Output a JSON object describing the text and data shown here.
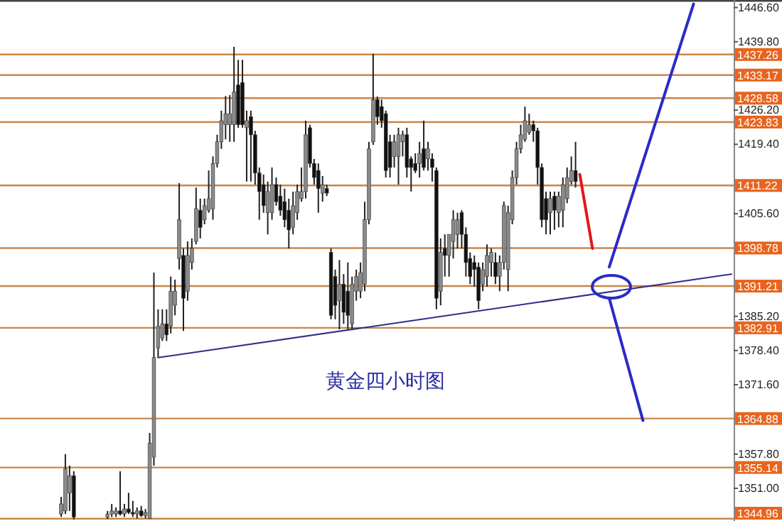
{
  "chart_data": {
    "type": "candlestick",
    "annotations": [
      "黄金四小时图"
    ],
    "tick_labels": "y",
    "categories": [
      null,
      null,
      null,
      null,
      null,
      null,
      null,
      null,
      null,
      null,
      null,
      null,
      null,
      null,
      null,
      null,
      null,
      null,
      null,
      null,
      null,
      null,
      null,
      null,
      null,
      null,
      null,
      null,
      null,
      null,
      null,
      null,
      null,
      null,
      null,
      null,
      null,
      null,
      null,
      null,
      null,
      null,
      null,
      null,
      null,
      null,
      null,
      null,
      null,
      null,
      null,
      null,
      null,
      null,
      null,
      null,
      null,
      null,
      null,
      null,
      null,
      null,
      null,
      null,
      null,
      null,
      null,
      null,
      null,
      null,
      null,
      null,
      null,
      null,
      null,
      null,
      null,
      null,
      null,
      null,
      null,
      null,
      null,
      null,
      null,
      null,
      null,
      null,
      null,
      null,
      null,
      null,
      null,
      null,
      null,
      null,
      null,
      null,
      null,
      null,
      null,
      null,
      null,
      null,
      null,
      null,
      null,
      null,
      null,
      null,
      null,
      null,
      null,
      null,
      null,
      null,
      null,
      null,
      null,
      null,
      null,
      null,
      null,
      null,
      null,
      null,
      null,
      null,
      null,
      null,
      null,
      null,
      null,
      null,
      null,
      null,
      null,
      null,
      null,
      null,
      null,
      null,
      null,
      null,
      null,
      null,
      null,
      null,
      null,
      null,
      null,
      null,
      null,
      null,
      null,
      null,
      null,
      null,
      null,
      null,
      null,
      null,
      null,
      null,
      null,
      null,
      null,
      null,
      null,
      null,
      null,
      null,
      null,
      null
    ],
    "ohlc": [
      null,
      null,
      null,
      null,
      null,
      null,
      null,
      null,
      null,
      null,
      null,
      null,
      null,
      null,
      [
        1345.9,
        1349.3,
        1345.3,
        1347.9
      ],
      [
        1346.5,
        1357.8,
        1345.9,
        1354.9
      ],
      [
        1350.1,
        1355.5,
        1346.5,
        1353.5
      ],
      [
        1353.5,
        1354.4,
        1344.8,
        1345.3
      ],
      null,
      null,
      null,
      null,
      null,
      null,
      null,
      [
        1345.3,
        1346.5,
        1344.9,
        1345.9
      ],
      [
        1345.9,
        1347.9,
        1345.3,
        1346.5
      ],
      [
        1345.9,
        1347.2,
        1345.3,
        1346.5
      ],
      [
        1346.5,
        1354.4,
        1345.6,
        1345.9
      ],
      [
        1345.9,
        1347.9,
        1345.3,
        1346.9
      ],
      [
        1346.9,
        1350.1,
        1345.9,
        1346.2
      ],
      [
        1346.2,
        1348.5,
        1345.3,
        1345.9
      ],
      [
        1345.9,
        1347.2,
        1345.0,
        1346.5
      ],
      [
        1346.5,
        1347.5,
        1345.3,
        1345.6
      ],
      [
        1345.6,
        1346.9,
        1345.0,
        1346.2
      ],
      [
        1345.0,
        1362.0,
        1344.9,
        1360.0
      ],
      [
        1357.2,
        1393.9,
        1355.5,
        1377.0
      ],
      [
        1378.9,
        1386.6,
        1377.0,
        1383.2
      ],
      [
        1380.9,
        1386.6,
        1380.3,
        1383.7
      ],
      [
        1383.7,
        1386.6,
        1380.3,
        1381.5
      ],
      [
        1383.2,
        1393.1,
        1381.8,
        1390.2
      ],
      [
        1387.4,
        1392.5,
        1385.4,
        1390.2
      ],
      [
        1396.7,
        1411.7,
        1394.5,
        1404.4
      ],
      [
        1397.3,
        1398.7,
        1382.3,
        1388.8
      ],
      [
        1390.2,
        1400.1,
        1388.3,
        1397.3
      ],
      [
        1395.9,
        1400.7,
        1394.5,
        1398.7
      ],
      [
        1400.1,
        1410.8,
        1399.5,
        1406.6
      ],
      [
        1406.3,
        1408.6,
        1400.7,
        1402.9
      ],
      [
        1404.4,
        1408.6,
        1403.5,
        1407.2
      ],
      [
        1406.3,
        1414.2,
        1405.8,
        1408.6
      ],
      [
        1406.6,
        1417.0,
        1404.4,
        1415.6
      ],
      [
        1415.6,
        1421.3,
        1414.8,
        1419.9
      ],
      [
        1419.9,
        1426.1,
        1418.5,
        1424.1
      ],
      [
        1423.3,
        1429.0,
        1420.4,
        1425.5
      ],
      [
        1423.3,
        1429.2,
        1419.9,
        1425.5
      ],
      [
        1423.3,
        1438.8,
        1419.9,
        1429.8
      ],
      [
        1431.2,
        1436.2,
        1422.7,
        1423.3
      ],
      [
        1431.7,
        1436.2,
        1422.7,
        1423.3
      ],
      [
        1422.7,
        1426.1,
        1412.0,
        1424.1
      ],
      [
        1424.9,
        1426.1,
        1412.0,
        1421.3
      ],
      [
        1421.3,
        1422.1,
        1411.4,
        1413.7
      ],
      [
        1413.7,
        1414.8,
        1404.4,
        1410.0
      ],
      [
        1411.4,
        1413.4,
        1405.8,
        1407.2
      ],
      [
        1405.8,
        1412.0,
        1401.5,
        1410.0
      ],
      [
        1405.8,
        1414.8,
        1404.4,
        1411.4
      ],
      [
        1411.4,
        1412.8,
        1407.2,
        1408.0
      ],
      [
        1409.1,
        1411.4,
        1405.2,
        1406.3
      ],
      [
        1408.0,
        1410.6,
        1402.9,
        1404.4
      ],
      [
        1406.3,
        1408.6,
        1398.7,
        1402.4
      ],
      [
        1402.9,
        1410.0,
        1401.5,
        1407.2
      ],
      [
        1405.8,
        1411.4,
        1404.4,
        1410.0
      ],
      [
        1408.6,
        1414.8,
        1408.0,
        1410.0
      ],
      [
        1410.0,
        1424.1,
        1408.6,
        1421.3
      ],
      [
        1422.7,
        1423.3,
        1414.8,
        1415.6
      ],
      [
        1415.6,
        1416.5,
        1411.4,
        1412.8
      ],
      [
        1414.2,
        1415.6,
        1405.8,
        1410.6
      ],
      [
        1409.7,
        1413.1,
        1408.0,
        1411.4
      ],
      [
        1410.6,
        1411.4,
        1409.1,
        1409.7
      ],
      [
        1397.9,
        1398.7,
        1384.6,
        1385.4
      ],
      [
        1393.1,
        1394.5,
        1384.6,
        1387.4
      ],
      [
        1388.3,
        1396.4,
        1382.6,
        1391.6
      ],
      [
        1391.6,
        1393.6,
        1383.7,
        1386.0
      ],
      [
        1390.2,
        1395.9,
        1382.6,
        1385.4
      ],
      [
        1383.7,
        1393.1,
        1382.6,
        1391.6
      ],
      [
        1390.2,
        1394.5,
        1388.3,
        1393.1
      ],
      [
        1390.2,
        1395.9,
        1388.8,
        1393.9
      ],
      [
        1391.6,
        1408.0,
        1390.2,
        1404.4
      ],
      [
        1404.4,
        1419.9,
        1403.5,
        1418.5
      ],
      [
        1419.9,
        1437.4,
        1419.3,
        1428.3
      ],
      [
        1428.3,
        1428.9,
        1423.3,
        1424.9
      ],
      [
        1426.9,
        1428.3,
        1422.7,
        1424.1
      ],
      [
        1425.5,
        1426.1,
        1412.8,
        1414.2
      ],
      [
        1419.9,
        1421.3,
        1412.8,
        1414.8
      ],
      [
        1417.0,
        1421.3,
        1414.8,
        1419.9
      ],
      [
        1417.0,
        1422.7,
        1411.4,
        1421.3
      ],
      [
        1419.9,
        1422.1,
        1417.0,
        1421.3
      ],
      [
        1421.3,
        1422.7,
        1412.8,
        1414.8
      ],
      [
        1416.5,
        1417.0,
        1410.0,
        1414.8
      ],
      [
        1415.6,
        1417.6,
        1413.7,
        1414.2
      ],
      [
        1415.6,
        1419.9,
        1412.8,
        1417.6
      ],
      [
        1418.5,
        1424.1,
        1414.2,
        1414.8
      ],
      [
        1416.5,
        1419.9,
        1414.2,
        1418.5
      ],
      [
        1416.5,
        1417.6,
        1412.0,
        1414.8
      ],
      [
        1414.2,
        1414.8,
        1386.6,
        1388.8
      ],
      [
        1390.2,
        1400.7,
        1387.4,
        1397.9
      ],
      [
        1398.7,
        1401.5,
        1393.1,
        1397.3
      ],
      [
        1397.3,
        1401.5,
        1393.1,
        1401.5
      ],
      [
        1400.1,
        1406.3,
        1396.7,
        1404.4
      ],
      [
        1401.5,
        1405.8,
        1398.7,
        1404.4
      ],
      [
        1405.8,
        1406.3,
        1398.7,
        1401.5
      ],
      [
        1401.5,
        1402.9,
        1393.1,
        1395.9
      ],
      [
        1396.7,
        1397.9,
        1391.6,
        1393.1
      ],
      [
        1395.9,
        1397.3,
        1391.1,
        1394.5
      ],
      [
        1395.0,
        1395.9,
        1386.6,
        1388.3
      ],
      [
        1391.6,
        1395.9,
        1390.2,
        1394.5
      ],
      [
        1393.1,
        1399.5,
        1391.1,
        1397.3
      ],
      [
        1395.9,
        1398.7,
        1393.1,
        1397.9
      ],
      [
        1395.9,
        1397.9,
        1391.6,
        1393.1
      ],
      [
        1393.1,
        1397.3,
        1390.2,
        1395.9
      ],
      [
        1395.9,
        1408.0,
        1394.5,
        1407.2
      ],
      [
        1394.5,
        1407.2,
        1390.2,
        1405.8
      ],
      [
        1404.4,
        1414.2,
        1403.5,
        1412.8
      ],
      [
        1412.8,
        1419.9,
        1411.4,
        1418.5
      ],
      [
        1418.5,
        1423.3,
        1417.6,
        1421.3
      ],
      [
        1420.4,
        1426.9,
        1419.9,
        1424.1
      ],
      [
        1421.8,
        1425.5,
        1421.3,
        1423.3
      ],
      [
        1423.3,
        1424.1,
        1419.9,
        1422.1
      ],
      [
        1422.1,
        1422.7,
        1411.4,
        1414.8
      ],
      [
        1414.8,
        1415.6,
        1402.9,
        1404.4
      ],
      [
        1408.6,
        1410.0,
        1401.5,
        1404.4
      ],
      [
        1405.8,
        1410.0,
        1401.5,
        1408.6
      ],
      [
        1409.1,
        1410.0,
        1402.4,
        1406.3
      ],
      [
        1405.8,
        1410.0,
        1402.9,
        1409.1
      ],
      [
        1406.3,
        1412.8,
        1402.9,
        1411.4
      ],
      [
        1408.6,
        1414.8,
        1407.7,
        1412.8
      ],
      [
        1412.0,
        1417.0,
        1411.4,
        1414.2
      ],
      [
        1414.2,
        1419.9,
        1410.8,
        1412.0
      ],
      null,
      null,
      null,
      null,
      null,
      null,
      null,
      null,
      null,
      null,
      null,
      null,
      null,
      null,
      null,
      null,
      null,
      null,
      null,
      null,
      null,
      null,
      null,
      null,
      null,
      null,
      null,
      null,
      null,
      null,
      null,
      null,
      null,
      null,
      null,
      null,
      null
    ],
    "series": [
      {
        "type": "line",
        "color": "#2e2e8a",
        "values": [
          null,
          null,
          null,
          null,
          null,
          null,
          null,
          null,
          null,
          null,
          null,
          null,
          null,
          null,
          null,
          null,
          null,
          null,
          null,
          null,
          null,
          null,
          null,
          null,
          null,
          null,
          null,
          null,
          null,
          null,
          null,
          null,
          null,
          null,
          null,
          null,
          null,
          1377.0,
          null,
          null,
          null,
          null,
          null,
          null,
          null,
          null,
          null,
          null,
          null,
          null,
          null,
          null,
          null,
          null,
          null,
          null,
          null,
          null,
          null,
          null,
          null,
          null,
          null,
          null,
          null,
          null,
          null,
          null,
          null,
          null,
          null,
          null,
          null,
          null,
          null,
          null,
          null,
          null,
          null,
          null,
          null,
          null,
          null,
          null,
          null,
          null,
          null,
          null,
          null,
          null,
          null,
          null,
          null,
          null,
          null,
          null,
          null,
          null,
          null,
          null,
          null,
          null,
          null,
          null,
          null,
          null,
          null,
          null,
          null,
          null,
          null,
          null,
          null,
          null,
          null,
          null,
          null,
          null,
          null,
          null,
          null,
          null,
          null,
          null,
          null,
          null,
          null,
          null,
          null,
          null,
          null,
          null,
          null,
          null,
          null,
          null,
          null,
          null,
          null,
          null,
          null,
          null,
          null,
          null,
          null,
          null,
          null,
          null,
          null,
          null,
          null,
          null,
          null,
          null,
          null,
          null,
          null,
          null,
          null,
          null,
          null,
          null,
          null,
          null,
          null,
          null,
          null,
          null,
          null,
          null,
          null,
          null,
          null,
          1393.6
        ]
      },
      {
        "type": "line",
        "color": "#2b2bc8",
        "values": [
          null,
          null,
          null,
          null,
          null,
          null,
          null,
          null,
          null,
          null,
          null,
          null,
          null,
          null,
          null,
          null,
          null,
          null,
          null,
          null,
          null,
          null,
          null,
          null,
          null,
          null,
          null,
          null,
          null,
          null,
          null,
          null,
          null,
          null,
          null,
          null,
          null,
          null,
          null,
          null,
          null,
          null,
          null,
          null,
          null,
          null,
          null,
          null,
          null,
          null,
          null,
          null,
          null,
          null,
          null,
          null,
          null,
          null,
          null,
          null,
          null,
          null,
          null,
          null,
          null,
          null,
          null,
          null,
          null,
          null,
          null,
          null,
          null,
          null,
          null,
          null,
          null,
          null,
          null,
          null,
          null,
          null,
          null,
          null,
          null,
          null,
          null,
          null,
          null,
          null,
          null,
          null,
          null,
          null,
          null,
          null,
          null,
          null,
          null,
          null,
          null,
          null,
          null,
          null,
          null,
          null,
          null,
          null,
          null,
          null,
          null,
          null,
          null,
          null,
          null,
          null,
          null,
          null,
          null,
          null,
          null,
          null,
          null,
          null,
          null,
          null,
          null,
          null,
          null,
          null,
          null,
          null,
          null,
          null,
          null,
          null,
          null,
          null,
          null,
          null,
          null,
          null,
          null,
          null,
          1395.0,
          null,
          null,
          null,
          null,
          null,
          null,
          null,
          null,
          null,
          null,
          null,
          null,
          null,
          null,
          null,
          null,
          null,
          null,
          null,
          1447.3,
          null,
          null,
          null,
          null,
          null,
          null,
          null,
          null,
          null
        ]
      },
      {
        "type": "line",
        "color": "#2b2bc8",
        "values": [
          null,
          null,
          null,
          null,
          null,
          null,
          null,
          null,
          null,
          null,
          null,
          null,
          null,
          null,
          null,
          null,
          null,
          null,
          null,
          null,
          null,
          null,
          null,
          null,
          null,
          null,
          null,
          null,
          null,
          null,
          null,
          null,
          null,
          null,
          null,
          null,
          null,
          null,
          null,
          null,
          null,
          null,
          null,
          null,
          null,
          null,
          null,
          null,
          null,
          null,
          null,
          null,
          null,
          null,
          null,
          null,
          null,
          null,
          null,
          null,
          null,
          null,
          null,
          null,
          null,
          null,
          null,
          null,
          null,
          null,
          null,
          null,
          null,
          null,
          null,
          null,
          null,
          null,
          null,
          null,
          null,
          null,
          null,
          null,
          null,
          null,
          null,
          null,
          null,
          null,
          null,
          null,
          null,
          null,
          null,
          null,
          null,
          null,
          null,
          null,
          null,
          null,
          null,
          null,
          null,
          null,
          null,
          null,
          null,
          null,
          null,
          null,
          null,
          null,
          null,
          null,
          null,
          null,
          null,
          null,
          null,
          null,
          null,
          null,
          null,
          null,
          null,
          null,
          null,
          null,
          null,
          null,
          null,
          null,
          null,
          null,
          null,
          null,
          null,
          null,
          null,
          null,
          null,
          null,
          1388.8,
          null,
          null,
          null,
          null,
          null,
          null,
          null,
          1364.5,
          null,
          null,
          null,
          null,
          null,
          null,
          null,
          null,
          null,
          null,
          null,
          null,
          null,
          null,
          null,
          null,
          null,
          null,
          null,
          null,
          null
        ]
      },
      {
        "type": "line",
        "color": "#e01818",
        "values": [
          null,
          null,
          null,
          null,
          null,
          null,
          null,
          null,
          null,
          null,
          null,
          null,
          null,
          null,
          null,
          null,
          null,
          null,
          null,
          null,
          null,
          null,
          null,
          null,
          null,
          null,
          null,
          null,
          null,
          null,
          null,
          null,
          null,
          null,
          null,
          null,
          null,
          null,
          null,
          null,
          null,
          null,
          null,
          null,
          null,
          null,
          null,
          null,
          null,
          null,
          null,
          null,
          null,
          null,
          null,
          null,
          null,
          null,
          null,
          null,
          null,
          null,
          null,
          null,
          null,
          null,
          null,
          null,
          null,
          null,
          null,
          null,
          null,
          null,
          null,
          null,
          null,
          null,
          null,
          null,
          null,
          null,
          null,
          null,
          null,
          null,
          null,
          null,
          null,
          null,
          null,
          null,
          null,
          null,
          null,
          null,
          null,
          null,
          null,
          null,
          null,
          null,
          null,
          null,
          null,
          null,
          null,
          null,
          null,
          null,
          null,
          null,
          null,
          null,
          null,
          null,
          null,
          null,
          null,
          null,
          null,
          null,
          null,
          null,
          null,
          null,
          null,
          null,
          null,
          null,
          null,
          null,
          null,
          null,
          null,
          null,
          null,
          1413.4,
          null,
          null,
          1398.7,
          null,
          null,
          null,
          null,
          null,
          null,
          null,
          null,
          null,
          null,
          null,
          null,
          null,
          null,
          null,
          null,
          null,
          null,
          null,
          null,
          null,
          null,
          null,
          null,
          null,
          null,
          null,
          null,
          null,
          null,
          null,
          null,
          null
        ]
      }
    ],
    "ref_lines": [
      {
        "axis": "y",
        "value": 1437.26,
        "label": "1437.26",
        "color": "#c8864a"
      },
      {
        "axis": "y",
        "value": 1433.17,
        "label": "1433.17",
        "color": "#c8864a"
      },
      {
        "axis": "y",
        "value": 1428.58,
        "label": "1428.58",
        "color": "#c8864a"
      },
      {
        "axis": "y",
        "value": 1423.83,
        "label": "1423.83",
        "color": "#c8864a"
      },
      {
        "axis": "y",
        "value": 1411.22,
        "label": "1411.22",
        "color": "#c8864a"
      },
      {
        "axis": "y",
        "value": 1398.78,
        "label": "1398.78",
        "color": "#c8864a"
      },
      {
        "axis": "y",
        "value": 1391.21,
        "label": "1391.21",
        "color": "#c8864a"
      },
      {
        "axis": "y",
        "value": 1382.91,
        "label": "1382.91",
        "color": "#c8864a"
      },
      {
        "axis": "y",
        "value": 1364.88,
        "label": "1364.88",
        "color": "#c8864a"
      },
      {
        "axis": "y",
        "value": 1355.14,
        "label": "1355.14",
        "color": "#c8864a"
      },
      {
        "axis": "y",
        "value": 1344.96,
        "label": "1344.96",
        "color": "#c8864a"
      }
    ],
    "ylim": [
      1344.5,
      1448.1
    ],
    "yticks": [
      {
        "value": 1446.6,
        "label": "1446.60"
      },
      {
        "value": 1439.8,
        "label": "1439.80"
      },
      {
        "value": 1426.2,
        "label": "1426.20"
      },
      {
        "value": 1419.4,
        "label": "1419.40"
      },
      {
        "value": 1405.6,
        "label": "1405.60"
      },
      {
        "value": 1385.2,
        "label": "1385.20"
      },
      {
        "value": 1378.4,
        "label": "1378.40"
      },
      {
        "value": 1371.6,
        "label": "1371.60"
      },
      {
        "value": 1357.8,
        "label": "1357.80"
      },
      {
        "value": 1351.0,
        "label": "1351.00"
      }
    ]
  }
}
